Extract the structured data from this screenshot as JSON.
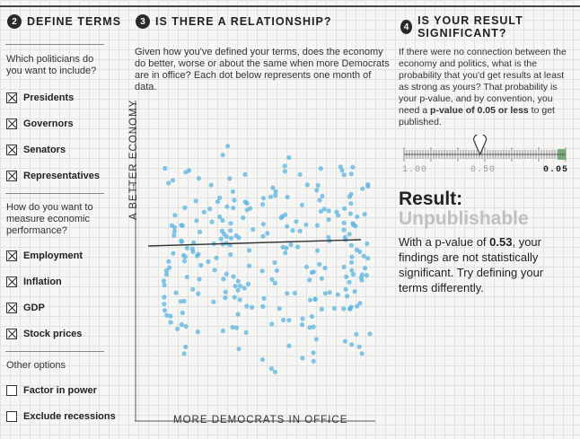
{
  "sections": {
    "define": {
      "number": "2",
      "title": "DEFINE TERMS"
    },
    "relationship": {
      "number": "3",
      "title": "IS THERE A RELATIONSHIP?"
    },
    "significant": {
      "number": "4",
      "title": "IS YOUR RESULT SIGNIFICANT?"
    }
  },
  "left": {
    "politicians_question": "Which politicians do you want to include?",
    "politicians": [
      {
        "label": "Presidents",
        "checked": true
      },
      {
        "label": "Governors",
        "checked": true
      },
      {
        "label": "Senators",
        "checked": true
      },
      {
        "label": "Representatives",
        "checked": true
      }
    ],
    "economic_question": "How do you want to measure economic performance?",
    "economic": [
      {
        "label": "Employment",
        "checked": true
      },
      {
        "label": "Inflation",
        "checked": true
      },
      {
        "label": "GDP",
        "checked": true
      },
      {
        "label": "Stock prices",
        "checked": true
      }
    ],
    "other_title": "Other options",
    "other": [
      {
        "label": "Factor in power",
        "checked": false
      },
      {
        "label": "Exclude recessions",
        "checked": false
      }
    ]
  },
  "relationship": {
    "intro": "Given how you've defined your terms, does the economy do better, worse or about the same when more Democrats are in office? Each dot below represents one month of data.",
    "y_axis_label": "A BETTER ECONOMY",
    "x_axis_label": "MORE DEMOCRATS IN OFFICE"
  },
  "significance": {
    "intro_pre": "If there were no connection between the economy and politics, what is the probability that you'd get results at least as strong as yours? That probability is your p-value, and by convention, you need a ",
    "intro_bold": "p-value of 0.05 or less",
    "intro_post": " to get published.",
    "slider_labels": [
      "1.00",
      "0.50",
      "0.05"
    ],
    "slider_value": 0.53,
    "result_title": "Result:",
    "result_status": "Unpublishable",
    "result_desc_pre": "With a p-value of ",
    "result_p": "0.53",
    "result_desc_post": ", your findings are not statistically significant. Try defining your terms differently."
  },
  "colors": {
    "dot": "#5ab4e0",
    "accent_green": "#4fa84f",
    "line": "#333333"
  }
}
